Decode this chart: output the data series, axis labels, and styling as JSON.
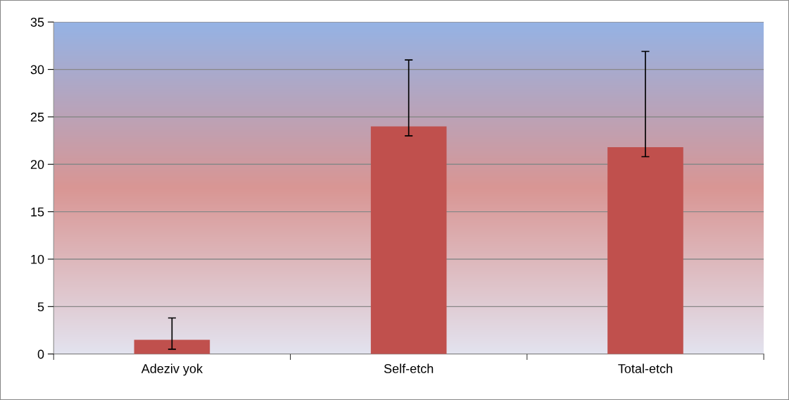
{
  "chart_data": {
    "type": "bar",
    "categories": [
      "Adeziv yok",
      "Self-etch",
      "Total-etch"
    ],
    "values": [
      1.5,
      24,
      21.8
    ],
    "color": "#c0504d",
    "errors": [
      [
        0.5,
        3.8
      ],
      [
        23,
        31
      ],
      [
        20.8,
        31.9
      ]
    ],
    "ylim": [
      0,
      35
    ],
    "yticks": [
      0,
      5,
      10,
      15,
      20,
      25,
      30,
      35
    ],
    "grid": "y",
    "legend": false
  }
}
